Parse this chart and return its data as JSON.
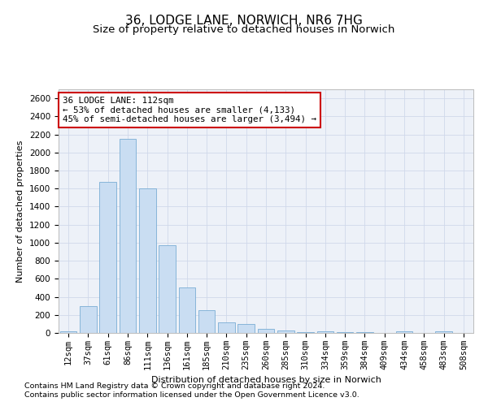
{
  "title": "36, LODGE LANE, NORWICH, NR6 7HG",
  "subtitle": "Size of property relative to detached houses in Norwich",
  "xlabel": "Distribution of detached houses by size in Norwich",
  "ylabel": "Number of detached properties",
  "footnote1": "Contains HM Land Registry data © Crown copyright and database right 2024.",
  "footnote2": "Contains public sector information licensed under the Open Government Licence v3.0.",
  "annotation_title": "36 LODGE LANE: 112sqm",
  "annotation_line2": "← 53% of detached houses are smaller (4,133)",
  "annotation_line3": "45% of semi-detached houses are larger (3,494) →",
  "bar_color": "#c9ddf2",
  "bar_edge_color": "#7aadd4",
  "categories": [
    "12sqm",
    "37sqm",
    "61sqm",
    "86sqm",
    "111sqm",
    "136sqm",
    "161sqm",
    "185sqm",
    "210sqm",
    "235sqm",
    "260sqm",
    "285sqm",
    "310sqm",
    "334sqm",
    "359sqm",
    "384sqm",
    "409sqm",
    "434sqm",
    "458sqm",
    "483sqm",
    "508sqm"
  ],
  "values": [
    18,
    300,
    1670,
    2150,
    1600,
    970,
    500,
    248,
    120,
    100,
    45,
    25,
    12,
    18,
    5,
    12,
    4,
    18,
    4,
    18,
    4
  ],
  "ylim": [
    0,
    2700
  ],
  "yticks": [
    0,
    200,
    400,
    600,
    800,
    1000,
    1200,
    1400,
    1600,
    1800,
    2000,
    2200,
    2400,
    2600
  ],
  "grid_color": "#d0d8ea",
  "bg_color": "#edf1f8",
  "fig_bg_color": "#ffffff",
  "annotation_box_color": "#ffffff",
  "annotation_box_edge": "#cc0000",
  "title_fontsize": 11,
  "subtitle_fontsize": 9.5,
  "axis_label_fontsize": 8,
  "tick_fontsize": 7.5,
  "annotation_fontsize": 7.8,
  "footnote_fontsize": 6.8
}
